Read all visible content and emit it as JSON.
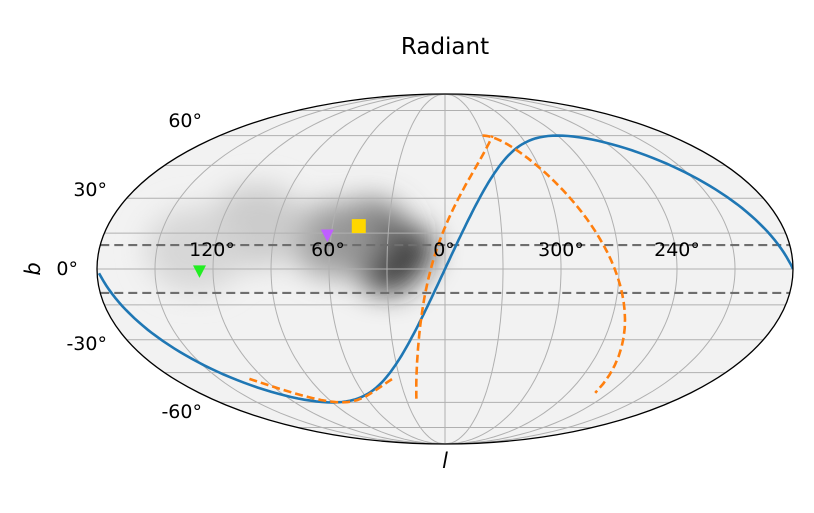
{
  "chart_data": {
    "type": "scatter",
    "projection": "mollweide",
    "title": "Radiant",
    "xlabel": "l",
    "ylabel": "b",
    "x_ticks": [
      "120°",
      "60°",
      "0°",
      "300°",
      "240°"
    ],
    "y_ticks": [
      "60°",
      "30°",
      "0°",
      "-30°",
      "-60°"
    ],
    "grid": true,
    "density_hotspots": [
      {
        "l": 22,
        "b": 8,
        "level": 1.0
      },
      {
        "l": 30,
        "b": 2,
        "level": 0.85
      },
      {
        "l": 40,
        "b": 15,
        "level": 0.55
      },
      {
        "l": 58,
        "b": 12,
        "level": 0.35
      },
      {
        "l": 100,
        "b": 18,
        "level": 0.15
      },
      {
        "l": 130,
        "b": 8,
        "level": 0.1
      }
    ],
    "reference_lines": [
      {
        "kind": "latitude",
        "b": 10,
        "style": "dashed",
        "color": "#6e6e6e"
      },
      {
        "kind": "latitude",
        "b": -10,
        "style": "dashed",
        "color": "#6e6e6e"
      }
    ],
    "curves": [
      {
        "kind": "great-circle",
        "style": "solid",
        "color": "#1f77b4",
        "pole_l": 90,
        "pole_b": 30
      },
      {
        "kind": "small-circle",
        "style": "dashed",
        "color": "#ff7f0e"
      }
    ],
    "markers": [
      {
        "shape": "square",
        "color": "#ffd700",
        "l": 46,
        "b": 18
      },
      {
        "shape": "triangle-down",
        "color": "#bf5fff",
        "l": 62,
        "b": 14
      },
      {
        "shape": "triangle-down",
        "color": "#22ee22",
        "l": 127,
        "b": -1
      }
    ],
    "colors": {
      "blue": "#1f77b4",
      "orange": "#ff7f0e",
      "grid": "#b0b0b0",
      "dashed": "#6e6e6e"
    }
  }
}
